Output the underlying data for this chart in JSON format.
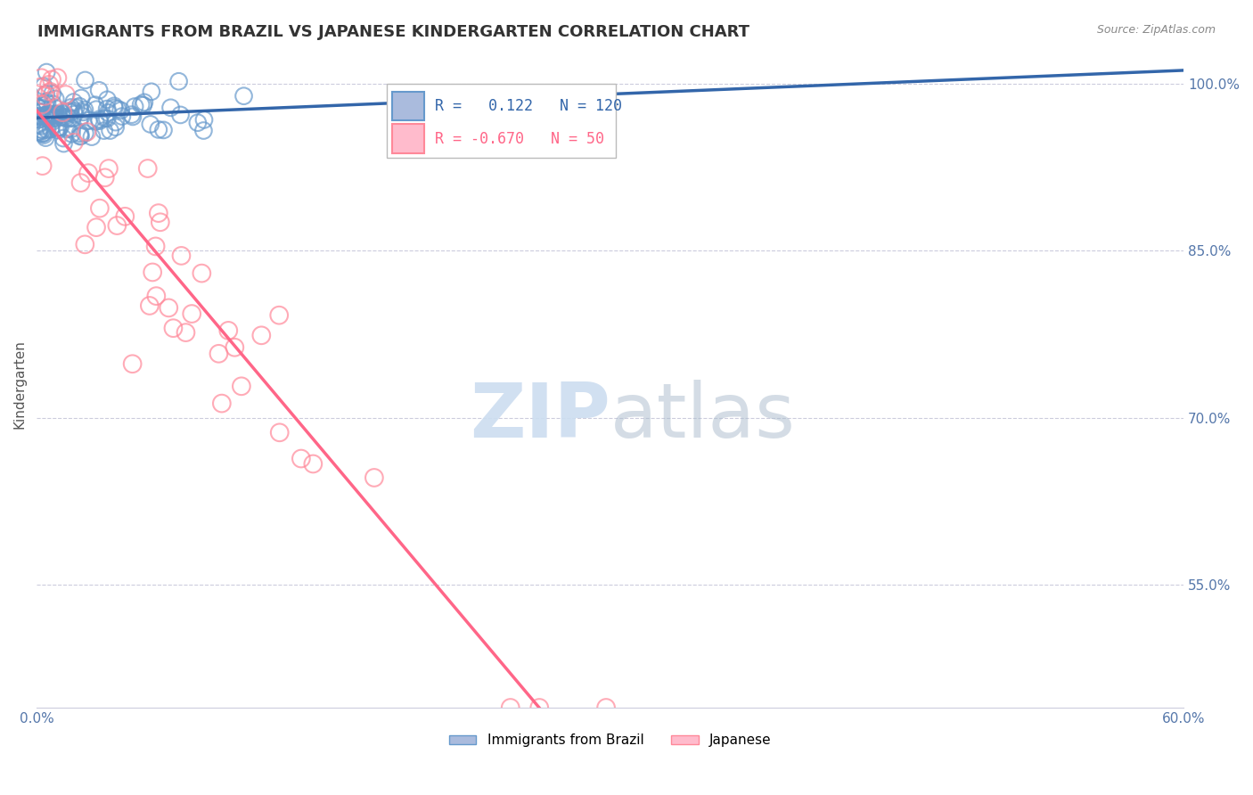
{
  "title": "IMMIGRANTS FROM BRAZIL VS JAPANESE KINDERGARTEN CORRELATION CHART",
  "source": "Source: ZipAtlas.com",
  "xlabel_bottom": "Immigrants from Brazil",
  "xlabel_right": "Japanese",
  "ylabel": "Kindergarten",
  "xlim": [
    0.0,
    0.6
  ],
  "ylim": [
    0.44,
    1.02
  ],
  "xticks": [
    0.0,
    0.1,
    0.2,
    0.3,
    0.4,
    0.5,
    0.6
  ],
  "xticklabels": [
    "0.0%",
    "",
    "",
    "",
    "",
    "",
    "60.0%"
  ],
  "ytick_right_vals": [
    1.0,
    0.85,
    0.7,
    0.55
  ],
  "ytick_right_labels": [
    "100.0%",
    "85.0%",
    "70.0%",
    "55.0%"
  ],
  "brazil_R": 0.122,
  "brazil_N": 120,
  "japan_R": -0.67,
  "japan_N": 50,
  "brazil_color": "#6699CC",
  "japan_color": "#FF8899",
  "brazil_line_color": "#3366AA",
  "japan_line_color": "#FF6688",
  "grid_color": "#CCCCDD",
  "watermark_zip_color": "#CCDDF0",
  "watermark_atlas_color": "#AABBCC",
  "background_color": "#FFFFFF",
  "title_color": "#333333",
  "axis_color": "#5577AA",
  "seed": 42
}
